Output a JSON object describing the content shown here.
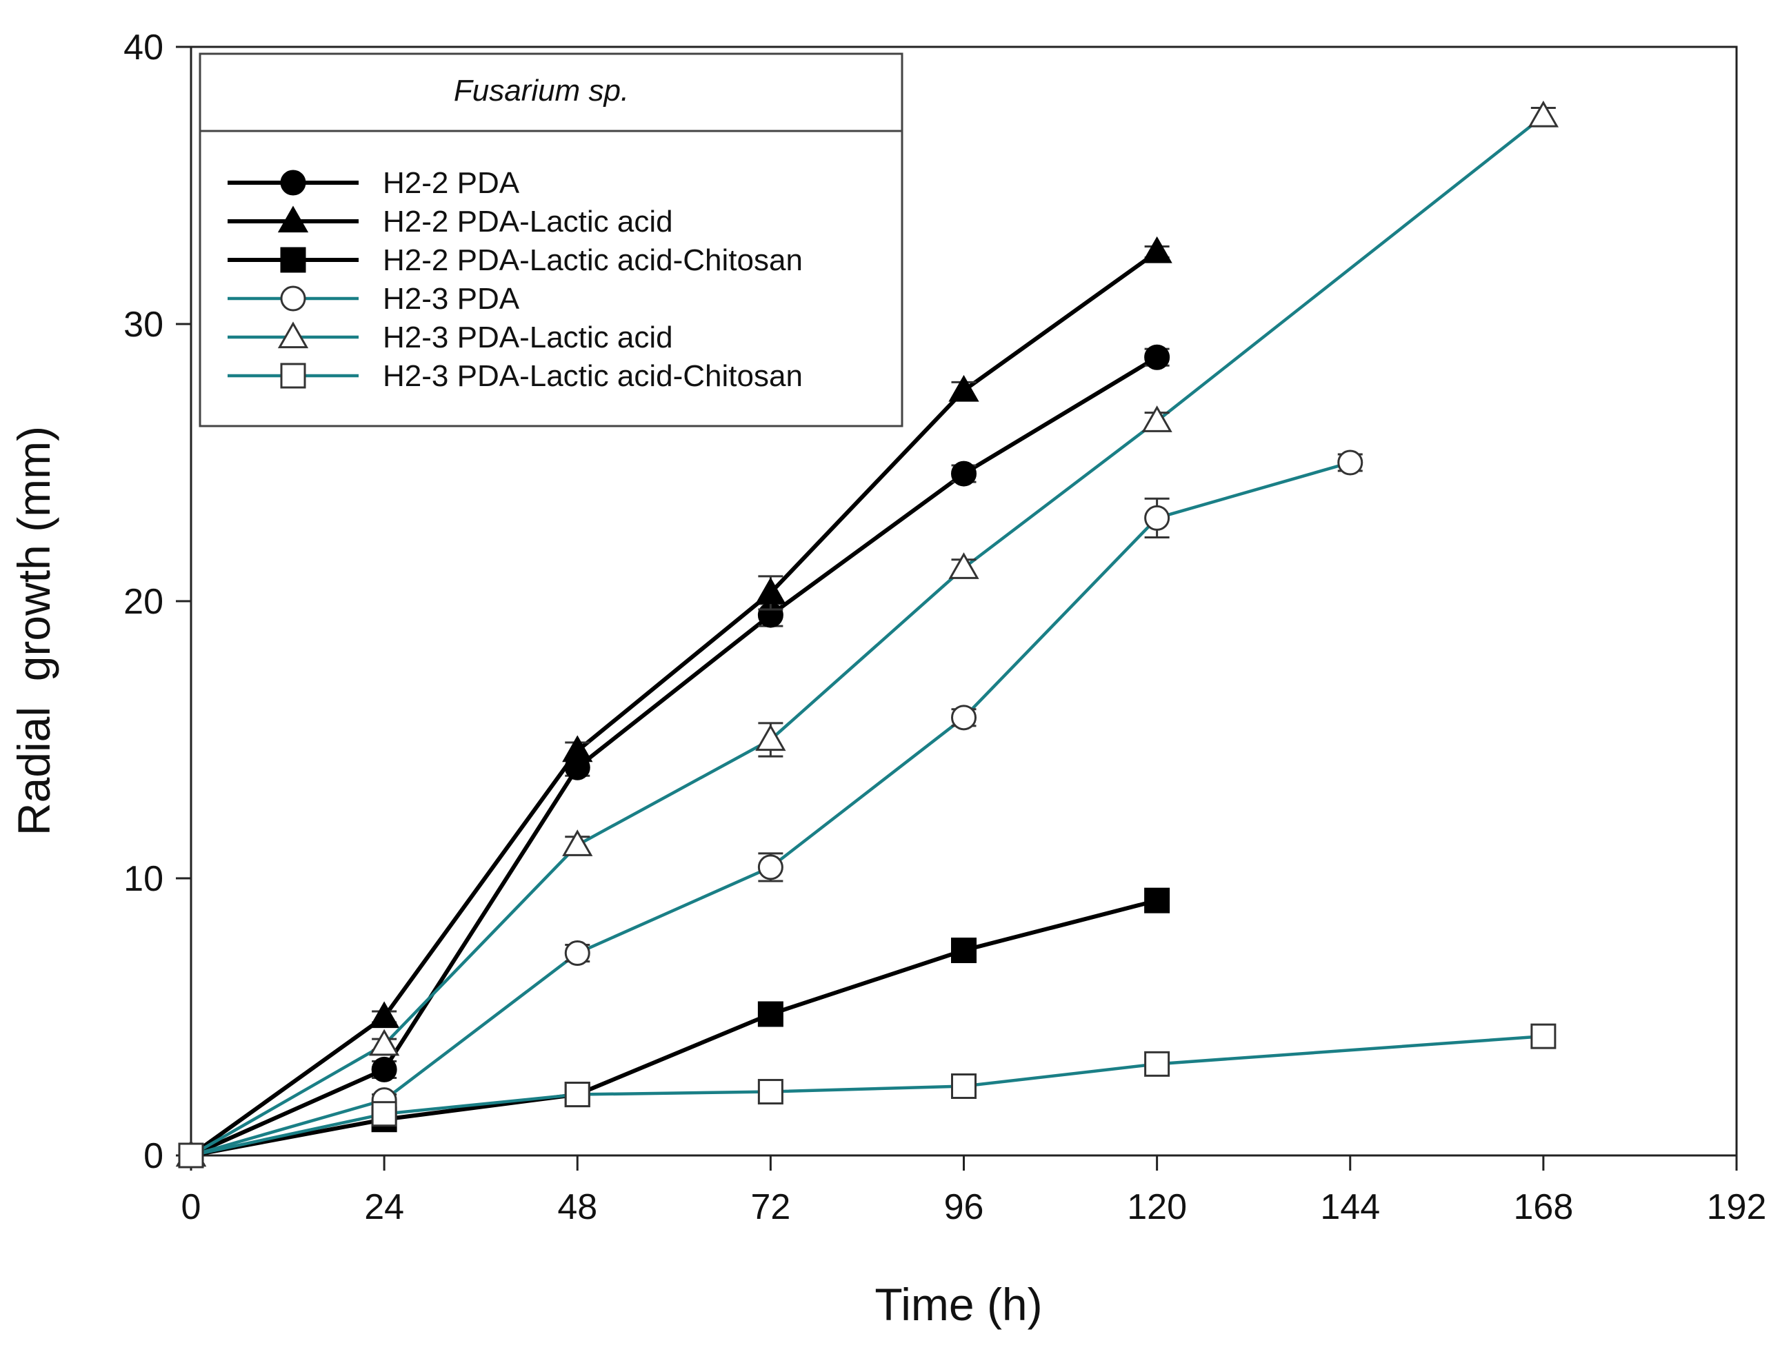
{
  "chart_data": {
    "type": "line",
    "xlabel": "Time (h)",
    "ylabel": "Radial  growth (mm)",
    "xlim": [
      0,
      192
    ],
    "ylim": [
      0,
      40
    ],
    "xticks": [
      0,
      24,
      48,
      72,
      96,
      120,
      144,
      168,
      192
    ],
    "yticks": [
      0,
      10,
      20,
      30,
      40
    ],
    "grid": false,
    "legend": {
      "title": "Fusarium sp.",
      "placement": "top-left"
    },
    "colors": {
      "black": "#000000",
      "teal": "#1a7f86"
    },
    "series": [
      {
        "name": "H2-2 PDA",
        "color": "#000000",
        "marker": "circle",
        "filled": true,
        "x": [
          0,
          24,
          48,
          72,
          96,
          120
        ],
        "y": [
          0,
          3.1,
          14.0,
          19.5,
          24.6,
          28.8
        ],
        "err": [
          0,
          0.3,
          0.3,
          0.4,
          0.3,
          0.3
        ]
      },
      {
        "name": "H2-2 PDA-Lactic acid",
        "color": "#000000",
        "marker": "triangle",
        "filled": true,
        "x": [
          0,
          24,
          48,
          72,
          96,
          120
        ],
        "y": [
          0,
          5.0,
          14.6,
          20.3,
          27.6,
          32.6
        ],
        "err": [
          0,
          0.2,
          0.3,
          0.6,
          0.3,
          0.2
        ]
      },
      {
        "name": "H2-2 PDA-Lactic acid-Chitosan",
        "color": "#000000",
        "marker": "square",
        "filled": true,
        "x": [
          0,
          24,
          48,
          72,
          96,
          120
        ],
        "y": [
          0,
          1.3,
          2.2,
          5.1,
          7.4,
          9.2
        ],
        "err": [
          0,
          0.1,
          0.1,
          0.2,
          0.2,
          0.2
        ]
      },
      {
        "name": "H2-3 PDA",
        "color": "#1a7f86",
        "marker": "circle",
        "filled": false,
        "x": [
          0,
          24,
          48,
          72,
          96,
          120,
          144
        ],
        "y": [
          0,
          2.0,
          7.3,
          10.4,
          15.8,
          23.0,
          25.0
        ],
        "err": [
          0,
          0.2,
          0.3,
          0.5,
          0.3,
          0.7,
          0.3
        ]
      },
      {
        "name": "H2-3 PDA-Lactic acid",
        "color": "#1a7f86",
        "marker": "triangle",
        "filled": false,
        "x": [
          0,
          24,
          48,
          72,
          96,
          120,
          168
        ],
        "y": [
          0,
          4.0,
          11.2,
          15.0,
          21.2,
          26.5,
          37.5
        ],
        "err": [
          0,
          0.2,
          0.3,
          0.6,
          0.3,
          0.3,
          0.3
        ]
      },
      {
        "name": "H2-3 PDA-Lactic acid-Chitosan",
        "color": "#1a7f86",
        "marker": "square",
        "filled": false,
        "x": [
          0,
          24,
          48,
          72,
          96,
          120,
          168
        ],
        "y": [
          0,
          1.5,
          2.2,
          2.3,
          2.5,
          3.3,
          4.3
        ],
        "err": [
          0,
          0.1,
          0.2,
          0.2,
          0.2,
          0.2,
          0.3
        ]
      }
    ]
  }
}
